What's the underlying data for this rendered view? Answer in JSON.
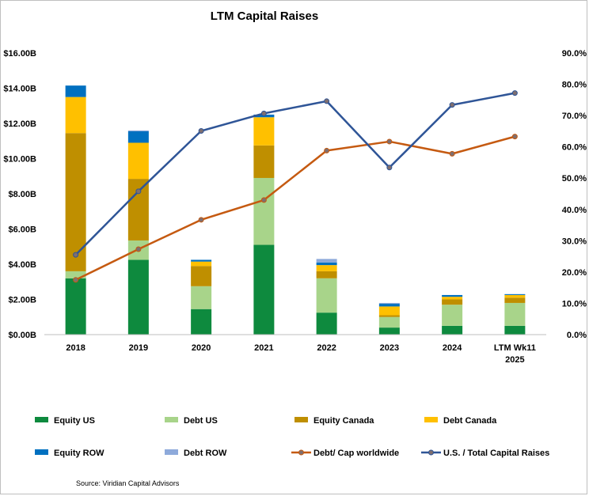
{
  "chart_data": {
    "type": "bar",
    "title": "LTM Capital Raises",
    "categories": [
      "2018",
      "2019",
      "2020",
      "2021",
      "2022",
      "2023",
      "2024",
      [
        "LTM Wk11",
        "2025"
      ]
    ],
    "y_left": {
      "ticks": [
        "$0.00B",
        "$2.00B",
        "$4.00B",
        "$6.00B",
        "$8.00B",
        "$10.00B",
        "$12.00B",
        "$14.00B",
        "$16.00B"
      ],
      "min": 0,
      "max": 16
    },
    "y_right": {
      "ticks": [
        "0.0%",
        "10.0%",
        "20.0%",
        "30.0%",
        "40.0%",
        "50.0%",
        "60.0%",
        "70.0%",
        "80.0%",
        "90.0%"
      ],
      "min": 0,
      "max": 90
    },
    "stacked_series": [
      {
        "name": "Equity US",
        "color": "#0e8a3e",
        "values": [
          3.2,
          4.25,
          1.45,
          5.1,
          1.25,
          0.4,
          0.5,
          0.5
        ]
      },
      {
        "name": "Debt US",
        "color": "#a8d48a",
        "values": [
          0.4,
          1.1,
          1.3,
          3.8,
          1.95,
          0.6,
          1.2,
          1.3
        ]
      },
      {
        "name": "Equity Canada",
        "color": "#bf8f00",
        "values": [
          7.85,
          3.5,
          1.15,
          1.85,
          0.4,
          0.1,
          0.3,
          0.3
        ]
      },
      {
        "name": "Debt Canada",
        "color": "#ffc000",
        "values": [
          2.05,
          2.05,
          0.25,
          1.6,
          0.35,
          0.5,
          0.15,
          0.15
        ]
      },
      {
        "name": "Equity ROW",
        "color": "#0070c0",
        "values": [
          0.65,
          0.65,
          0.1,
          0.15,
          0.15,
          0.15,
          0.1,
          0.05
        ]
      },
      {
        "name": "Debt ROW",
        "color": "#8eaadb",
        "values": [
          0.0,
          0.05,
          0.0,
          0.0,
          0.2,
          0.05,
          0.0,
          0.0
        ]
      }
    ],
    "line_series": [
      {
        "name": "Debt/ Cap worldwide",
        "color": "#c55a11",
        "axis": "right",
        "values": [
          17.5,
          27.3,
          36.7,
          43.0,
          58.8,
          61.7,
          57.8,
          63.3
        ]
      },
      {
        "name": "U.S. / Total Capital Raises",
        "color": "#2f5597",
        "axis": "right",
        "values": [
          25.5,
          45.8,
          65.1,
          70.7,
          74.6,
          53.4,
          73.4,
          77.2
        ]
      }
    ],
    "legend_position": "bottom",
    "grid": false
  },
  "source": "Source: Viridian Capital Advisors"
}
